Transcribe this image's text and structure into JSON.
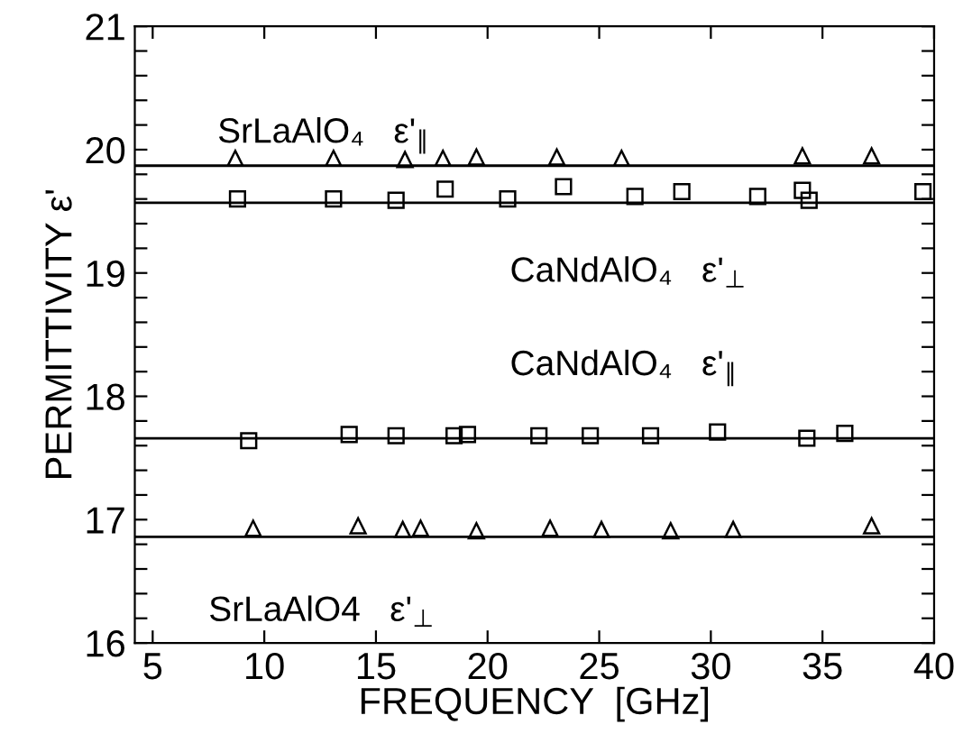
{
  "chart_data": {
    "type": "scatter",
    "xlabel": "FREQUENCY  [GHz]",
    "ylabel": "PERMITTIVITY ε'",
    "xlim": [
      4.2,
      40
    ],
    "ylim": [
      16,
      21
    ],
    "xticks": [
      5,
      10,
      15,
      20,
      25,
      30,
      35,
      40
    ],
    "yticks": [
      16,
      {
        "value": 16.2,
        "label": null
      },
      {
        "value": 16.4,
        "label": null
      },
      {
        "value": 16.6,
        "label": null
      },
      {
        "value": 16.8,
        "label": null
      },
      17,
      {
        "value": 17.2,
        "label": null
      },
      {
        "value": 17.4,
        "label": null
      },
      {
        "value": 17.6,
        "label": null
      },
      {
        "value": 17.8,
        "label": null
      },
      18,
      {
        "value": 18.2,
        "label": null
      },
      {
        "value": 18.4,
        "label": null
      },
      {
        "value": 18.6,
        "label": null
      },
      {
        "value": 18.8,
        "label": null
      },
      19,
      {
        "value": 19.2,
        "label": null
      },
      {
        "value": 19.4,
        "label": null
      },
      {
        "value": 19.6,
        "label": null
      },
      {
        "value": 19.8,
        "label": null
      },
      20,
      {
        "value": 20.2,
        "label": null
      },
      {
        "value": 20.4,
        "label": null
      },
      {
        "value": 20.6,
        "label": null
      },
      {
        "value": 20.8,
        "label": null
      },
      21
    ],
    "grid": false,
    "legend": false,
    "series": [
      {
        "color": "#000000",
        "marker": "triangle",
        "x": [
          8.7,
          13.1,
          16.3,
          18.0,
          19.5,
          23.1,
          26.0,
          34.1,
          37.2
        ],
        "values": [
          19.93,
          19.93,
          19.92,
          19.93,
          19.94,
          19.94,
          19.93,
          19.95,
          19.95
        ]
      },
      {
        "color": "#000000",
        "marker": "square",
        "x": [
          8.8,
          13.1,
          15.9,
          18.1,
          20.9,
          23.4,
          26.6,
          28.7,
          32.1,
          34.1,
          34.4,
          39.5
        ],
        "values": [
          19.6,
          19.6,
          19.59,
          19.68,
          19.6,
          19.7,
          19.62,
          19.66,
          19.62,
          19.67,
          19.59,
          19.66
        ]
      },
      {
        "color": "#000000",
        "marker": "square",
        "x": [
          9.3,
          13.8,
          15.9,
          18.5,
          19.1,
          22.3,
          24.6,
          27.3,
          30.3,
          34.3,
          36.0
        ],
        "values": [
          17.64,
          17.69,
          17.68,
          17.68,
          17.69,
          17.68,
          17.68,
          17.68,
          17.71,
          17.66,
          17.7
        ]
      },
      {
        "color": "#000000",
        "marker": "triangle",
        "x": [
          9.5,
          14.2,
          16.2,
          17.0,
          19.5,
          22.8,
          25.1,
          28.2,
          31.0,
          37.2
        ],
        "values": [
          16.93,
          16.95,
          16.92,
          16.93,
          16.91,
          16.93,
          16.92,
          16.91,
          16.92,
          16.95
        ]
      }
    ],
    "ref_lines": [
      {
        "axis": "y",
        "value": 19.87,
        "color": "#000000",
        "line_style": "solid"
      },
      {
        "axis": "y",
        "value": 19.57,
        "color": "#000000",
        "line_style": "solid"
      },
      {
        "axis": "y",
        "value": 17.66,
        "color": "#000000",
        "line_style": "solid"
      },
      {
        "axis": "y",
        "value": 16.86,
        "color": "#000000",
        "line_style": "solid"
      }
    ],
    "annotations": [
      {
        "text": "SrLaAlO₄   ε'$_{∥}$",
        "x": 7.9,
        "y": 19.87
      },
      {
        "text": "CaNdAlO₄   ε'$_{⊥}$",
        "x": 21.0,
        "y": 19.57
      },
      {
        "text": "CaNdAlO₄   ε'$_{∥}$",
        "x": 21.0,
        "y": 17.66
      },
      {
        "text": "SrLaAlO4   ε'$_{⊥}$",
        "x": 7.5,
        "y": 16.86
      }
    ]
  }
}
